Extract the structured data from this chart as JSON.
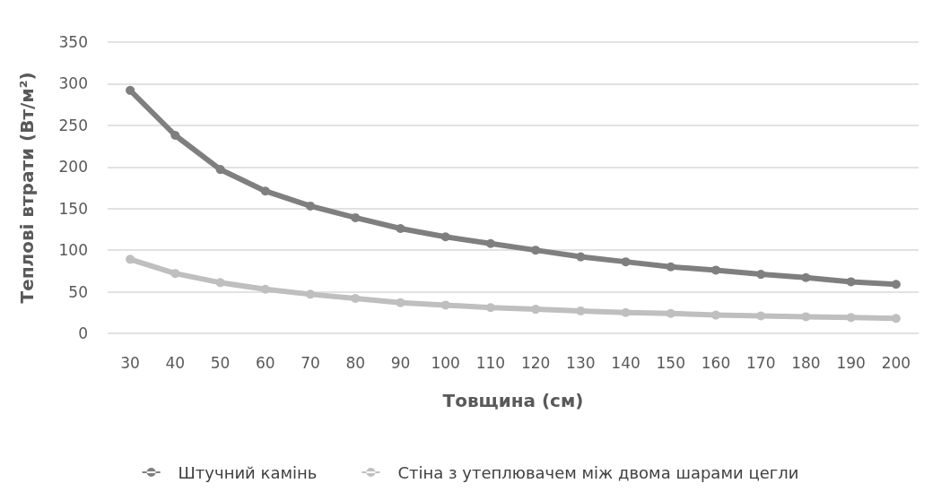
{
  "chart_data": {
    "type": "line",
    "xlabel": "Товщина (см)",
    "ylabel": "Теплові втрати (Вт/м²)",
    "categories": [
      "30",
      "40",
      "50",
      "60",
      "70",
      "80",
      "90",
      "100",
      "110",
      "120",
      "130",
      "140",
      "150",
      "160",
      "170",
      "180",
      "190",
      "200"
    ],
    "series": [
      {
        "name": "Штучний камінь",
        "color": "#7f7f7f",
        "values": [
          292,
          238,
          197,
          171,
          153,
          139,
          126,
          116,
          108,
          100,
          92,
          86,
          80,
          76,
          71,
          67,
          62,
          59
        ]
      },
      {
        "name": "Стіна з утеплювачем між двома шарами цегли",
        "color": "#bfbfbf",
        "values": [
          89,
          72,
          61,
          53,
          47,
          42,
          37,
          34,
          31,
          29,
          27,
          25,
          24,
          22,
          21,
          20,
          19,
          18
        ]
      }
    ],
    "ylim": [
      0,
      350
    ],
    "yticks": [
      0,
      50,
      100,
      150,
      200,
      250,
      300,
      350
    ],
    "grid": "y",
    "legend": "bottom",
    "marker": "circle",
    "line_style": "solid"
  }
}
